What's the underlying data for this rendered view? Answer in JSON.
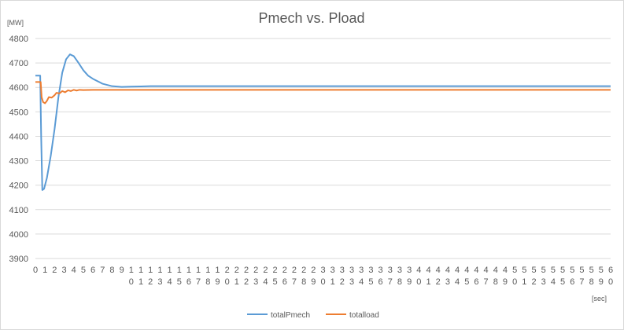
{
  "chart_data": {
    "type": "line",
    "title": "Pmech vs. Pload",
    "ylabel": "[MW]",
    "xlabel": "[sec]",
    "ylim": [
      3900,
      4800
    ],
    "y_ticks": [
      3900,
      4000,
      4100,
      4200,
      4300,
      4400,
      4500,
      4600,
      4700,
      4800
    ],
    "xlim": [
      0,
      60
    ],
    "x_ticks": [
      "0",
      "1",
      "2",
      "3",
      "4",
      "5",
      "6",
      "7",
      "8",
      "9",
      "10",
      "11",
      "12",
      "13",
      "14",
      "15",
      "16",
      "17",
      "18",
      "19",
      "20",
      "21",
      "22",
      "23",
      "24",
      "25",
      "26",
      "27",
      "28",
      "29",
      "30",
      "31",
      "32",
      "33",
      "34",
      "35",
      "36",
      "37",
      "38",
      "39",
      "40",
      "41",
      "42",
      "43",
      "44",
      "45",
      "46",
      "47",
      "48",
      "49",
      "50",
      "51",
      "52",
      "53",
      "54",
      "55",
      "56",
      "57",
      "58",
      "59",
      "60"
    ],
    "grid": "horizontal",
    "legend": "bottom",
    "colors": {
      "totalPmech": "#5b9bd5",
      "totalload": "#ed7d31",
      "grid": "#d9d9d9",
      "text": "#595959"
    },
    "series": [
      {
        "name": "totalPmech",
        "points": [
          [
            0,
            4648
          ],
          [
            0.45,
            4648
          ],
          [
            0.5,
            4648
          ],
          [
            0.6,
            4400
          ],
          [
            0.72,
            4180
          ],
          [
            0.9,
            4185
          ],
          [
            1.2,
            4230
          ],
          [
            1.6,
            4320
          ],
          [
            2,
            4430
          ],
          [
            2.4,
            4560
          ],
          [
            2.8,
            4660
          ],
          [
            3.2,
            4715
          ],
          [
            3.6,
            4735
          ],
          [
            4,
            4728
          ],
          [
            4.5,
            4700
          ],
          [
            5,
            4670
          ],
          [
            5.5,
            4648
          ],
          [
            6,
            4635
          ],
          [
            7,
            4615
          ],
          [
            8,
            4605
          ],
          [
            9,
            4602
          ],
          [
            10,
            4603
          ],
          [
            11,
            4604
          ],
          [
            12,
            4605
          ],
          [
            15,
            4605
          ],
          [
            20,
            4605
          ],
          [
            30,
            4605
          ],
          [
            40,
            4605
          ],
          [
            50,
            4605
          ],
          [
            60,
            4605
          ]
        ]
      },
      {
        "name": "totalload",
        "points": [
          [
            0,
            4622
          ],
          [
            0.45,
            4622
          ],
          [
            0.55,
            4622
          ],
          [
            0.65,
            4560
          ],
          [
            0.8,
            4540
          ],
          [
            1,
            4535
          ],
          [
            1.2,
            4545
          ],
          [
            1.4,
            4560
          ],
          [
            1.7,
            4558
          ],
          [
            2,
            4568
          ],
          [
            2.2,
            4578
          ],
          [
            2.5,
            4575
          ],
          [
            2.8,
            4585
          ],
          [
            3.1,
            4580
          ],
          [
            3.4,
            4588
          ],
          [
            3.7,
            4585
          ],
          [
            4,
            4590
          ],
          [
            4.3,
            4587
          ],
          [
            4.6,
            4590
          ],
          [
            5,
            4589
          ],
          [
            6,
            4590
          ],
          [
            10,
            4590
          ],
          [
            20,
            4590
          ],
          [
            30,
            4590
          ],
          [
            40,
            4590
          ],
          [
            50,
            4590
          ],
          [
            60,
            4590
          ]
        ]
      }
    ]
  }
}
